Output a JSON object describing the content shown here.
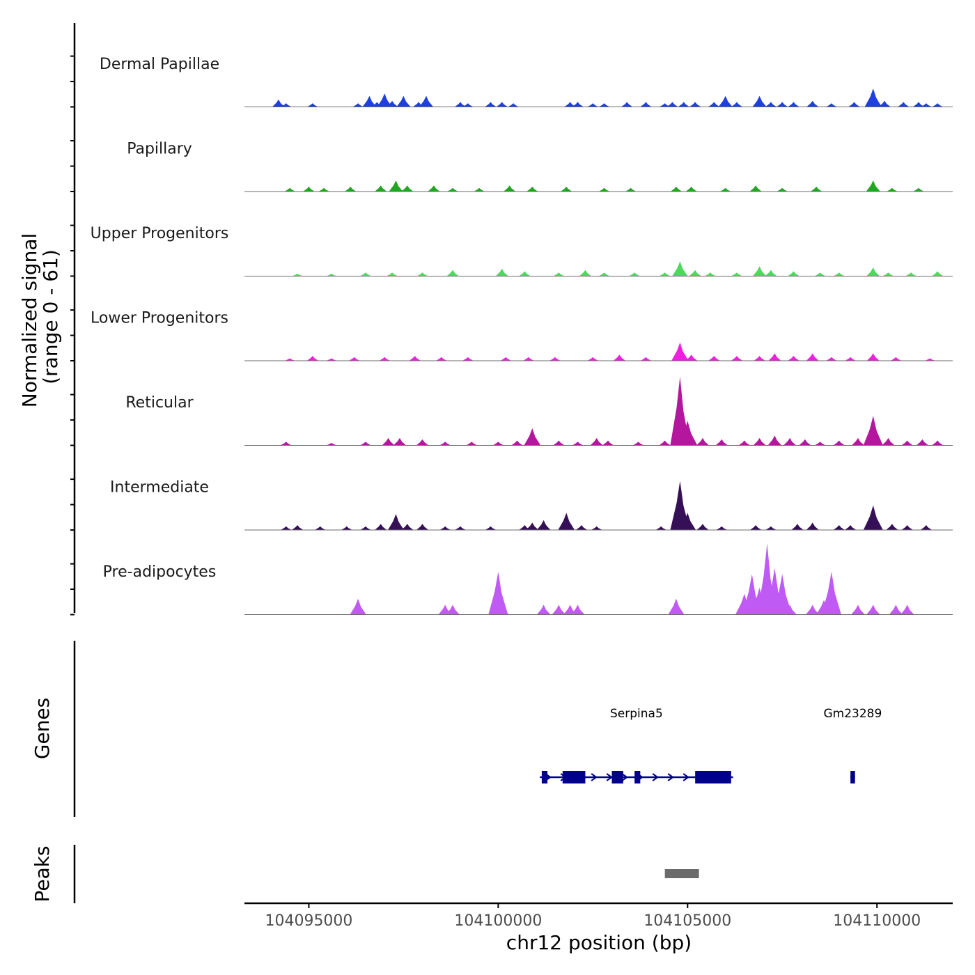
{
  "chart_data": {
    "type": "area",
    "title": "",
    "ylabel": "Normalized signal",
    "ylabel_sub": "(range 0 - 61)",
    "xlabel": "chr12 position (bp)",
    "xlim": [
      104093300,
      104112000
    ],
    "ylim": [
      0,
      61
    ],
    "x_ticks": [
      104095000,
      104100000,
      104105000,
      104110000
    ],
    "x_tick_labels": [
      "104095000",
      "104100000",
      "104105000",
      "104110000"
    ],
    "series": [
      {
        "name": "Dermal Papillae",
        "color": "#1f3fe0",
        "peaks": [
          [
            104094200,
            6
          ],
          [
            104094400,
            3
          ],
          [
            104095100,
            3
          ],
          [
            104096300,
            3
          ],
          [
            104096600,
            9
          ],
          [
            104096800,
            4
          ],
          [
            104097000,
            11
          ],
          [
            104097200,
            5
          ],
          [
            104097500,
            9
          ],
          [
            104097900,
            4
          ],
          [
            104098100,
            9
          ],
          [
            104099000,
            4
          ],
          [
            104099200,
            3
          ],
          [
            104099800,
            4
          ],
          [
            104100100,
            4
          ],
          [
            104100400,
            3
          ],
          [
            104101900,
            4
          ],
          [
            104102100,
            4
          ],
          [
            104102500,
            3
          ],
          [
            104102800,
            3
          ],
          [
            104103400,
            4
          ],
          [
            104103900,
            4
          ],
          [
            104104400,
            3
          ],
          [
            104104600,
            4
          ],
          [
            104104900,
            4
          ],
          [
            104105200,
            4
          ],
          [
            104105700,
            4
          ],
          [
            104106000,
            9
          ],
          [
            104106300,
            4
          ],
          [
            104106900,
            9
          ],
          [
            104107200,
            4
          ],
          [
            104107500,
            4
          ],
          [
            104107800,
            4
          ],
          [
            104108300,
            5
          ],
          [
            104108800,
            3
          ],
          [
            104109400,
            4
          ],
          [
            104109900,
            15
          ],
          [
            104110200,
            5
          ],
          [
            104110700,
            4
          ],
          [
            104111100,
            4
          ],
          [
            104111300,
            3
          ],
          [
            104111600,
            3
          ]
        ]
      },
      {
        "name": "Papillary",
        "color": "#1fa81f",
        "peaks": [
          [
            104094500,
            3
          ],
          [
            104095000,
            4
          ],
          [
            104095400,
            3
          ],
          [
            104096100,
            4
          ],
          [
            104096900,
            5
          ],
          [
            104097300,
            9
          ],
          [
            104097600,
            5
          ],
          [
            104098300,
            5
          ],
          [
            104098800,
            3
          ],
          [
            104099500,
            3
          ],
          [
            104100300,
            5
          ],
          [
            104100900,
            4
          ],
          [
            104101800,
            4
          ],
          [
            104102800,
            3
          ],
          [
            104103500,
            3
          ],
          [
            104104700,
            4
          ],
          [
            104105100,
            4
          ],
          [
            104106000,
            3
          ],
          [
            104106800,
            5
          ],
          [
            104107500,
            3
          ],
          [
            104108400,
            4
          ],
          [
            104109900,
            9
          ],
          [
            104110400,
            3
          ],
          [
            104111100,
            3
          ]
        ]
      },
      {
        "name": "Upper Progenitors",
        "color": "#4cd95c",
        "peaks": [
          [
            104094700,
            2
          ],
          [
            104095600,
            2
          ],
          [
            104096500,
            3
          ],
          [
            104097200,
            3
          ],
          [
            104098000,
            3
          ],
          [
            104098800,
            5
          ],
          [
            104100100,
            6
          ],
          [
            104100700,
            4
          ],
          [
            104101600,
            3
          ],
          [
            104102300,
            5
          ],
          [
            104102800,
            3
          ],
          [
            104103600,
            3
          ],
          [
            104104400,
            3
          ],
          [
            104104800,
            12
          ],
          [
            104105200,
            5
          ],
          [
            104105600,
            3
          ],
          [
            104106300,
            3
          ],
          [
            104106900,
            8
          ],
          [
            104107200,
            5
          ],
          [
            104107800,
            4
          ],
          [
            104108500,
            3
          ],
          [
            104109000,
            3
          ],
          [
            104109900,
            7
          ],
          [
            104110300,
            3
          ],
          [
            104110900,
            3
          ],
          [
            104111600,
            4
          ]
        ]
      },
      {
        "name": "Lower Progenitors",
        "color": "#f01ee0",
        "peaks": [
          [
            104094500,
            2
          ],
          [
            104095100,
            4
          ],
          [
            104095600,
            2
          ],
          [
            104096200,
            3
          ],
          [
            104097000,
            3
          ],
          [
            104097800,
            4
          ],
          [
            104098500,
            3
          ],
          [
            104099200,
            3
          ],
          [
            104100200,
            3
          ],
          [
            104100800,
            3
          ],
          [
            104101500,
            3
          ],
          [
            104102500,
            3
          ],
          [
            104103200,
            5
          ],
          [
            104103900,
            3
          ],
          [
            104104800,
            15
          ],
          [
            104105100,
            5
          ],
          [
            104105700,
            4
          ],
          [
            104106300,
            4
          ],
          [
            104106900,
            4
          ],
          [
            104107300,
            6
          ],
          [
            104107800,
            4
          ],
          [
            104108300,
            6
          ],
          [
            104108800,
            3
          ],
          [
            104109300,
            3
          ],
          [
            104109900,
            6
          ],
          [
            104110500,
            3
          ],
          [
            104111400,
            2
          ]
        ]
      },
      {
        "name": "Reticular",
        "color": "#b4169e",
        "peaks": [
          [
            104094400,
            3
          ],
          [
            104095600,
            2
          ],
          [
            104096500,
            3
          ],
          [
            104097100,
            6
          ],
          [
            104097400,
            6
          ],
          [
            104098000,
            5
          ],
          [
            104098600,
            3
          ],
          [
            104099300,
            3
          ],
          [
            104100000,
            3
          ],
          [
            104100500,
            4
          ],
          [
            104100900,
            14
          ],
          [
            104101600,
            4
          ],
          [
            104102100,
            3
          ],
          [
            104102600,
            6
          ],
          [
            104102900,
            4
          ],
          [
            104103700,
            3
          ],
          [
            104104400,
            4
          ],
          [
            104104800,
            56
          ],
          [
            104105000,
            20
          ],
          [
            104105400,
            6
          ],
          [
            104105900,
            5
          ],
          [
            104106500,
            4
          ],
          [
            104106900,
            6
          ],
          [
            104107300,
            8
          ],
          [
            104107700,
            6
          ],
          [
            104108100,
            5
          ],
          [
            104108500,
            3
          ],
          [
            104109000,
            4
          ],
          [
            104109500,
            6
          ],
          [
            104109900,
            24
          ],
          [
            104110300,
            6
          ],
          [
            104110800,
            4
          ],
          [
            104111200,
            5
          ],
          [
            104111600,
            4
          ]
        ]
      },
      {
        "name": "Intermediate",
        "color": "#361057",
        "peaks": [
          [
            104094400,
            3
          ],
          [
            104094700,
            4
          ],
          [
            104095300,
            3
          ],
          [
            104096000,
            3
          ],
          [
            104096500,
            3
          ],
          [
            104096900,
            5
          ],
          [
            104097300,
            13
          ],
          [
            104097600,
            5
          ],
          [
            104098000,
            5
          ],
          [
            104098600,
            3
          ],
          [
            104099000,
            3
          ],
          [
            104099800,
            3
          ],
          [
            104100700,
            4
          ],
          [
            104100900,
            6
          ],
          [
            104101200,
            8
          ],
          [
            104101800,
            14
          ],
          [
            104102200,
            4
          ],
          [
            104102600,
            3
          ],
          [
            104104300,
            3
          ],
          [
            104104800,
            40
          ],
          [
            104105000,
            14
          ],
          [
            104105400,
            5
          ],
          [
            104105900,
            3
          ],
          [
            104106800,
            4
          ],
          [
            104107200,
            3
          ],
          [
            104107900,
            5
          ],
          [
            104108300,
            6
          ],
          [
            104109000,
            4
          ],
          [
            104109300,
            4
          ],
          [
            104109900,
            20
          ],
          [
            104110400,
            5
          ],
          [
            104110800,
            4
          ],
          [
            104111300,
            4
          ]
        ]
      },
      {
        "name": "Pre-adipocytes",
        "color": "#c05af5",
        "peaks": [
          [
            104096300,
            13
          ],
          [
            104098600,
            8
          ],
          [
            104098800,
            8
          ],
          [
            104100000,
            35
          ],
          [
            104100100,
            8
          ],
          [
            104101200,
            8
          ],
          [
            104101600,
            8
          ],
          [
            104101900,
            8
          ],
          [
            104102100,
            8
          ],
          [
            104104700,
            13
          ],
          [
            104106500,
            17
          ],
          [
            104106700,
            33
          ],
          [
            104106900,
            22
          ],
          [
            104107100,
            58
          ],
          [
            104107300,
            38
          ],
          [
            104107500,
            33
          ],
          [
            104107700,
            8
          ],
          [
            104108300,
            8
          ],
          [
            104108600,
            12
          ],
          [
            104108800,
            35
          ],
          [
            104109500,
            8
          ],
          [
            104109900,
            8
          ],
          [
            104110500,
            8
          ],
          [
            104110800,
            8
          ]
        ]
      }
    ],
    "genes": [
      {
        "name": "Serpina5",
        "start": 104101100,
        "end": 104106200,
        "strand": "+",
        "exons": [
          [
            104101150,
            104101300
          ],
          [
            104101700,
            104102300
          ],
          [
            104103000,
            104103300
          ],
          [
            104103600,
            104103750
          ],
          [
            104105200,
            104106150
          ]
        ]
      },
      {
        "name": "Gm23289",
        "start": 104109300,
        "end": 104109420,
        "strand": "+",
        "exons": [
          [
            104109300,
            104109420
          ]
        ]
      }
    ],
    "peaks_track": [
      [
        104104400,
        104105300
      ]
    ],
    "colors": {
      "gene": "#00008b",
      "peak": "#6b6b6b",
      "baseline": "#6b6b6b"
    }
  },
  "panels": {
    "genes_label": "Genes",
    "peaks_label": "Peaks"
  }
}
